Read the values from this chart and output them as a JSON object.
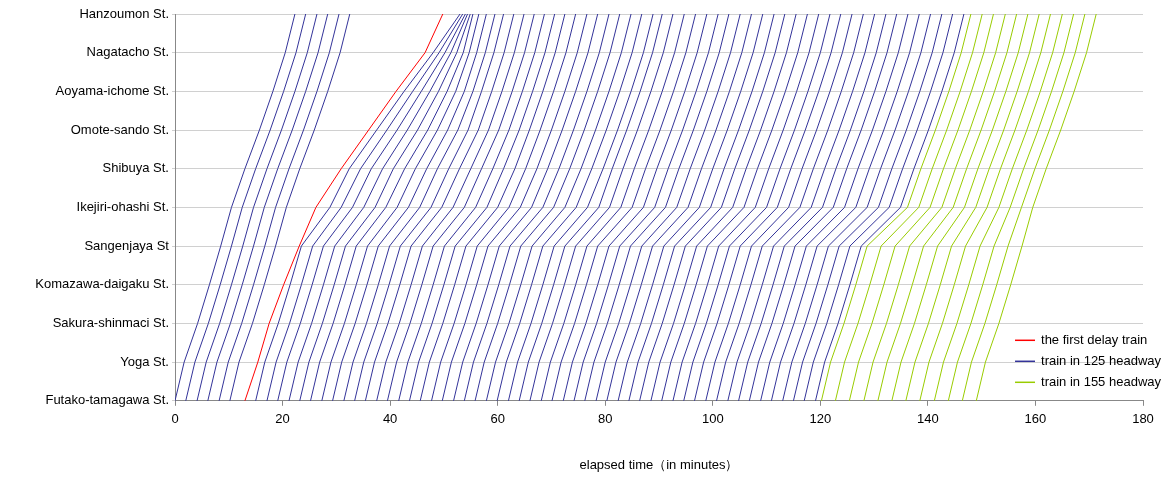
{
  "chart_data": {
    "type": "line",
    "orientation": "horizontal",
    "xlabel": "elapsed time（in minutes）",
    "xlim": [
      0,
      180
    ],
    "xticks": [
      0,
      20,
      40,
      60,
      80,
      100,
      120,
      140,
      160,
      180
    ],
    "categories": [
      "Hanzoumon St.",
      "Nagatacho St.",
      "Aoyama-ichome St.",
      "Omote-sando St.",
      "Shibuya St.",
      "Ikejiri-ohashi St.",
      "Sangenjaya St",
      "Komazawa-daigaku St.",
      "Sakura-shinmaci St.",
      "Yoga St.",
      "Futako-tamagawa St."
    ],
    "grid": "y",
    "legend": "bottom right",
    "marker": "none",
    "line_style": "solid",
    "series": [
      {
        "name": "the first delay train",
        "color": "#ff0000",
        "values": [
          49.8,
          46.5,
          41.1,
          36.0,
          30.9,
          26.2,
          23.1,
          20.2,
          17.5,
          15.4,
          13.0
        ]
      },
      {
        "name": "train in 125 headway",
        "color": "#333399",
        "values": [
          22.3,
          20.5,
          18.2,
          15.7,
          13.0,
          10.5,
          8.5,
          6.4,
          4.2,
          1.7,
          0
        ]
      },
      {
        "color": "#333399",
        "values": [
          24.3,
          22.5,
          20.2,
          17.7,
          15.0,
          12.5,
          10.5,
          8.4,
          6.2,
          3.7,
          2.0
        ]
      },
      {
        "color": "#333399",
        "values": [
          26.4,
          24.6,
          22.3,
          19.8,
          17.1,
          14.6,
          12.6,
          10.5,
          8.3,
          5.8,
          4.1
        ]
      },
      {
        "color": "#333399",
        "values": [
          28.4,
          26.6,
          24.3,
          21.8,
          19.1,
          16.6,
          14.6,
          12.5,
          10.3,
          7.8,
          6.1
        ]
      },
      {
        "color": "#333399",
        "values": [
          30.5,
          28.7,
          26.4,
          23.9,
          21.2,
          18.7,
          16.7,
          14.6,
          12.4,
          9.9,
          8.2
        ]
      },
      {
        "color": "#333399",
        "values": [
          32.5,
          30.7,
          28.4,
          25.9,
          23.2,
          20.7,
          18.7,
          16.6,
          14.4,
          11.9,
          10.2
        ]
      },
      {
        "color": "#333399",
        "values": [
          53.0,
          48.0,
          42.6,
          37.5,
          32.4,
          28.8,
          23.5,
          21.4,
          19.2,
          16.7,
          15.0
        ]
      },
      {
        "color": "#333399",
        "values": [
          53.5,
          49.1,
          44.2,
          39.4,
          34.5,
          30.9,
          25.6,
          23.5,
          21.3,
          18.8,
          17.1
        ]
      },
      {
        "color": "#333399",
        "values": [
          54.0,
          50.2,
          45.8,
          41.3,
          36.5,
          33.0,
          27.6,
          25.5,
          23.3,
          20.8,
          19.1
        ]
      },
      {
        "color": "#333399",
        "values": [
          54.4,
          51.3,
          47.4,
          43.2,
          38.6,
          35.1,
          29.7,
          27.6,
          25.4,
          22.9,
          21.2
        ]
      },
      {
        "color": "#333399",
        "values": [
          54.9,
          52.4,
          49.0,
          45.1,
          40.6,
          37.2,
          31.7,
          29.6,
          27.4,
          24.9,
          23.2
        ]
      },
      {
        "color": "#333399",
        "values": [
          55.4,
          53.6,
          50.6,
          47.0,
          42.7,
          39.2,
          33.7,
          31.6,
          29.4,
          26.9,
          25.2
        ]
      },
      {
        "color": "#333399",
        "values": [
          56.5,
          54.7,
          52.2,
          48.8,
          44.7,
          41.3,
          35.8,
          33.7,
          31.5,
          29.0,
          27.3
        ]
      },
      {
        "color": "#333399",
        "values": [
          57.9,
          56.1,
          53.8,
          50.7,
          46.8,
          43.4,
          37.8,
          35.7,
          33.5,
          31.0,
          29.3
        ]
      },
      {
        "color": "#333399",
        "values": [
          59.5,
          57.7,
          55.4,
          52.6,
          48.8,
          45.5,
          39.9,
          37.8,
          35.6,
          33.1,
          31.4
        ]
      },
      {
        "color": "#333399",
        "values": [
          61.1,
          59.3,
          57.0,
          54.5,
          50.9,
          47.6,
          41.9,
          39.8,
          37.6,
          35.1,
          33.4
        ]
      },
      {
        "color": "#333399",
        "values": [
          63.0,
          61.2,
          58.9,
          56.4,
          52.9,
          49.6,
          43.9,
          41.8,
          39.6,
          37.1,
          35.4
        ]
      },
      {
        "color": "#333399",
        "values": [
          64.9,
          63.1,
          60.8,
          58.3,
          55.0,
          51.7,
          46.0,
          43.9,
          41.7,
          39.2,
          37.5
        ]
      },
      {
        "color": "#333399",
        "values": [
          66.8,
          65.0,
          62.7,
          60.2,
          57.0,
          53.8,
          48.0,
          45.9,
          43.7,
          41.2,
          39.5
        ]
      },
      {
        "color": "#333399",
        "values": [
          68.7,
          66.9,
          64.6,
          62.1,
          59.1,
          55.9,
          50.1,
          48.0,
          45.8,
          43.3,
          41.6
        ]
      },
      {
        "color": "#333399",
        "values": [
          70.6,
          68.8,
          66.5,
          64.0,
          61.1,
          58.0,
          52.1,
          50.0,
          47.8,
          45.3,
          43.6
        ]
      },
      {
        "color": "#333399",
        "values": [
          72.5,
          70.7,
          68.4,
          65.9,
          63.2,
          60.0,
          54.1,
          52.0,
          49.8,
          47.3,
          45.6
        ]
      },
      {
        "color": "#333399",
        "values": [
          74.5,
          72.7,
          70.4,
          67.9,
          65.2,
          62.1,
          56.2,
          54.1,
          51.9,
          49.4,
          47.7
        ]
      },
      {
        "color": "#333399",
        "values": [
          76.6,
          74.8,
          72.5,
          70.0,
          67.3,
          64.2,
          58.2,
          56.1,
          53.9,
          51.4,
          49.7
        ]
      },
      {
        "color": "#333399",
        "values": [
          78.6,
          76.8,
          74.5,
          72.0,
          69.3,
          66.3,
          60.3,
          58.2,
          56.0,
          53.5,
          51.8
        ]
      },
      {
        "color": "#333399",
        "values": [
          80.7,
          78.9,
          76.6,
          74.1,
          71.4,
          68.4,
          62.3,
          60.2,
          58.0,
          55.5,
          53.8
        ]
      },
      {
        "color": "#333399",
        "values": [
          82.7,
          80.9,
          78.6,
          76.1,
          73.4,
          70.4,
          64.3,
          62.2,
          60.0,
          57.5,
          55.8
        ]
      },
      {
        "color": "#333399",
        "values": [
          84.8,
          83.0,
          80.7,
          78.2,
          75.5,
          72.5,
          66.4,
          64.3,
          62.1,
          59.6,
          57.9
        ]
      },
      {
        "color": "#333399",
        "values": [
          86.8,
          85.0,
          82.7,
          80.2,
          77.5,
          74.6,
          68.4,
          66.3,
          64.1,
          61.6,
          59.9
        ]
      },
      {
        "color": "#333399",
        "values": [
          88.9,
          87.1,
          84.8,
          82.3,
          79.6,
          76.7,
          70.5,
          68.4,
          66.2,
          63.7,
          62.0
        ]
      },
      {
        "color": "#333399",
        "values": [
          90.6,
          88.8,
          86.5,
          84.0,
          81.3,
          78.8,
          72.5,
          70.4,
          68.2,
          65.7,
          64.0
        ]
      },
      {
        "color": "#333399",
        "values": [
          92.6,
          90.8,
          88.5,
          86.0,
          83.3,
          80.8,
          74.5,
          72.4,
          70.2,
          67.7,
          66.0
        ]
      },
      {
        "color": "#333399",
        "values": [
          94.7,
          92.9,
          90.6,
          88.1,
          85.4,
          82.9,
          76.6,
          74.5,
          72.3,
          69.8,
          68.1
        ]
      },
      {
        "color": "#333399",
        "values": [
          96.8,
          95.0,
          92.7,
          90.2,
          87.5,
          85.0,
          78.6,
          76.5,
          74.3,
          71.8,
          70.1
        ]
      },
      {
        "color": "#333399",
        "values": [
          98.9,
          97.1,
          94.8,
          92.3,
          89.6,
          87.1,
          80.7,
          78.6,
          76.4,
          73.9,
          72.2
        ]
      },
      {
        "color": "#333399",
        "values": [
          101.0,
          99.2,
          96.9,
          94.4,
          91.7,
          89.2,
          82.7,
          80.6,
          78.4,
          75.9,
          74.2
        ]
      },
      {
        "color": "#333399",
        "values": [
          103.0,
          101.2,
          98.9,
          96.4,
          93.7,
          91.2,
          84.7,
          82.6,
          80.4,
          77.9,
          76.2
        ]
      },
      {
        "color": "#333399",
        "values": [
          105.1,
          103.3,
          101.0,
          98.5,
          95.8,
          93.3,
          86.8,
          84.7,
          82.5,
          80.0,
          78.3
        ]
      },
      {
        "color": "#333399",
        "values": [
          107.2,
          105.4,
          103.1,
          100.6,
          97.9,
          95.4,
          88.8,
          86.7,
          84.5,
          82.0,
          80.3
        ]
      },
      {
        "color": "#333399",
        "values": [
          109.3,
          107.5,
          105.2,
          102.7,
          100.0,
          97.5,
          90.9,
          88.8,
          86.6,
          84.1,
          82.4
        ]
      },
      {
        "color": "#333399",
        "values": [
          111.4,
          109.6,
          107.3,
          104.8,
          102.1,
          99.6,
          92.9,
          90.8,
          88.6,
          86.1,
          84.4
        ]
      },
      {
        "color": "#333399",
        "values": [
          113.4,
          111.6,
          109.3,
          106.8,
          104.1,
          101.6,
          94.9,
          92.8,
          90.6,
          88.1,
          86.4
        ]
      },
      {
        "color": "#333399",
        "values": [
          115.5,
          113.7,
          111.4,
          108.9,
          106.2,
          103.7,
          97.0,
          94.9,
          92.7,
          90.2,
          88.5
        ]
      },
      {
        "color": "#333399",
        "values": [
          117.6,
          115.8,
          113.5,
          111.0,
          108.3,
          105.8,
          99.0,
          96.9,
          94.7,
          92.2,
          90.5
        ]
      },
      {
        "color": "#333399",
        "values": [
          119.7,
          117.9,
          115.6,
          113.1,
          110.4,
          107.9,
          101.1,
          99.0,
          96.8,
          94.3,
          92.6
        ]
      },
      {
        "color": "#333399",
        "values": [
          121.8,
          120.0,
          117.7,
          115.2,
          112.5,
          110.0,
          103.1,
          101.0,
          98.8,
          96.3,
          94.6
        ]
      },
      {
        "color": "#333399",
        "values": [
          123.8,
          122.0,
          119.7,
          117.2,
          114.5,
          112.0,
          105.1,
          103.0,
          100.8,
          98.3,
          96.6
        ]
      },
      {
        "color": "#333399",
        "values": [
          125.9,
          124.1,
          121.8,
          119.3,
          116.6,
          114.1,
          107.2,
          105.1,
          102.9,
          100.4,
          98.7
        ]
      },
      {
        "color": "#333399",
        "values": [
          128.0,
          126.2,
          123.9,
          121.4,
          118.7,
          116.2,
          109.2,
          107.1,
          104.9,
          102.4,
          100.7
        ]
      },
      {
        "color": "#333399",
        "values": [
          130.1,
          128.3,
          126.0,
          123.5,
          120.8,
          118.3,
          111.3,
          109.2,
          107.0,
          104.5,
          102.8
        ]
      },
      {
        "color": "#333399",
        "values": [
          132.2,
          130.4,
          128.1,
          125.6,
          122.9,
          120.4,
          113.3,
          111.2,
          109.0,
          106.5,
          104.8
        ]
      },
      {
        "color": "#333399",
        "values": [
          134.2,
          132.4,
          130.1,
          127.6,
          124.9,
          122.4,
          115.3,
          113.2,
          111.0,
          108.5,
          106.8
        ]
      },
      {
        "color": "#333399",
        "values": [
          136.3,
          134.5,
          132.2,
          129.7,
          127.0,
          124.5,
          117.4,
          115.3,
          113.1,
          110.6,
          108.9
        ]
      },
      {
        "color": "#333399",
        "values": [
          138.4,
          136.6,
          134.3,
          131.8,
          129.1,
          126.6,
          119.4,
          117.3,
          115.1,
          112.6,
          110.9
        ]
      },
      {
        "color": "#333399",
        "values": [
          140.5,
          138.7,
          136.4,
          133.9,
          131.2,
          128.7,
          121.5,
          119.4,
          117.2,
          114.7,
          113.0
        ]
      },
      {
        "color": "#333399",
        "values": [
          142.6,
          140.8,
          138.5,
          136.0,
          133.3,
          130.8,
          123.5,
          121.4,
          119.2,
          116.7,
          115.0
        ]
      },
      {
        "color": "#333399",
        "values": [
          144.6,
          142.8,
          140.5,
          138.0,
          135.3,
          132.8,
          125.5,
          123.4,
          121.2,
          118.7,
          117.0
        ]
      },
      {
        "color": "#333399",
        "values": [
          146.7,
          144.9,
          142.6,
          140.1,
          137.4,
          134.9,
          127.6,
          125.5,
          123.3,
          120.8,
          119.1
        ]
      },
      {
        "name": "train in 155 headway",
        "color": "#99cc00",
        "values": [
          148.0,
          146.2,
          143.9,
          141.4,
          138.7,
          136.2,
          128.7,
          126.6,
          124.4,
          121.9,
          120.2
        ]
      },
      {
        "color": "#99cc00",
        "values": [
          150.1,
          148.3,
          146.0,
          143.5,
          140.8,
          138.3,
          131.3,
          129.2,
          127.0,
          124.5,
          122.8
        ]
      },
      {
        "color": "#99cc00",
        "values": [
          152.2,
          150.4,
          148.1,
          145.6,
          142.9,
          140.4,
          133.9,
          131.8,
          129.6,
          127.1,
          125.4
        ]
      },
      {
        "color": "#99cc00",
        "values": [
          154.4,
          152.6,
          150.3,
          147.8,
          145.1,
          142.6,
          136.6,
          134.5,
          132.3,
          129.8,
          128.1
        ]
      },
      {
        "color": "#99cc00",
        "values": [
          156.5,
          154.7,
          152.4,
          149.9,
          147.2,
          144.7,
          139.2,
          137.1,
          134.9,
          132.4,
          130.7
        ]
      },
      {
        "color": "#99cc00",
        "values": [
          158.6,
          156.8,
          154.5,
          152.0,
          149.3,
          146.8,
          141.8,
          139.7,
          137.5,
          135.0,
          133.3
        ]
      },
      {
        "color": "#99cc00",
        "values": [
          160.7,
          158.9,
          156.6,
          154.1,
          151.4,
          148.9,
          144.4,
          142.3,
          140.1,
          137.6,
          135.9
        ]
      },
      {
        "color": "#99cc00",
        "values": [
          162.8,
          161.0,
          158.7,
          156.2,
          153.5,
          151.0,
          147.0,
          144.9,
          142.7,
          140.2,
          138.5
        ]
      },
      {
        "color": "#99cc00",
        "values": [
          165.0,
          163.2,
          160.9,
          158.4,
          155.7,
          153.2,
          149.7,
          147.6,
          145.4,
          142.9,
          141.2
        ]
      },
      {
        "color": "#99cc00",
        "values": [
          167.1,
          165.3,
          163.0,
          160.5,
          157.8,
          155.3,
          152.3,
          150.2,
          148.0,
          145.5,
          143.8
        ]
      },
      {
        "color": "#99cc00",
        "values": [
          169.2,
          167.4,
          165.1,
          162.6,
          159.9,
          157.4,
          154.9,
          152.8,
          150.6,
          148.1,
          146.4
        ]
      },
      {
        "color": "#99cc00",
        "values": [
          171.3,
          169.5,
          167.2,
          164.7,
          162.0,
          159.5,
          157.5,
          155.4,
          153.2,
          150.7,
          149.0
        ]
      }
    ]
  }
}
